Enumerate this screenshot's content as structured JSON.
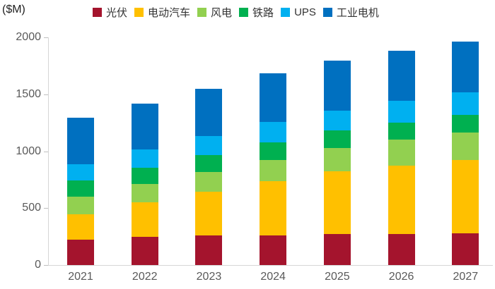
{
  "chart_data": {
    "type": "bar",
    "stacked": true,
    "title": "",
    "ylabel": "($M)",
    "xlabel": "",
    "categories": [
      "2021",
      "2022",
      "2023",
      "2024",
      "2025",
      "2026",
      "2027"
    ],
    "series": [
      {
        "name": "光伏",
        "color": "#A4142D",
        "values": [
          220,
          250,
          260,
          262,
          270,
          275,
          280
        ]
      },
      {
        "name": "电动汽车",
        "color": "#FFC000",
        "values": [
          228,
          300,
          386,
          476,
          552,
          600,
          640
        ]
      },
      {
        "name": "风电",
        "color": "#92D050",
        "values": [
          155,
          165,
          172,
          187,
          203,
          230,
          242
        ]
      },
      {
        "name": "铁路",
        "color": "#00B050",
        "values": [
          140,
          140,
          150,
          155,
          155,
          145,
          157
        ]
      },
      {
        "name": "UPS",
        "color": "#00B0F0",
        "values": [
          145,
          160,
          165,
          178,
          176,
          190,
          198
        ]
      },
      {
        "name": "工业电机",
        "color": "#0070C0",
        "values": [
          405,
          405,
          414,
          424,
          438,
          440,
          445
        ]
      }
    ],
    "totals": [
      1293,
      1420,
      1547,
      1682,
      1794,
      1880,
      1962
    ],
    "ylim": [
      0,
      2000
    ],
    "yticks": [
      0,
      500,
      1000,
      1500,
      2000
    ],
    "legend_position": "top",
    "grid": false,
    "axis_color": "#d6d6d6",
    "tick_label_color": "#595959"
  }
}
